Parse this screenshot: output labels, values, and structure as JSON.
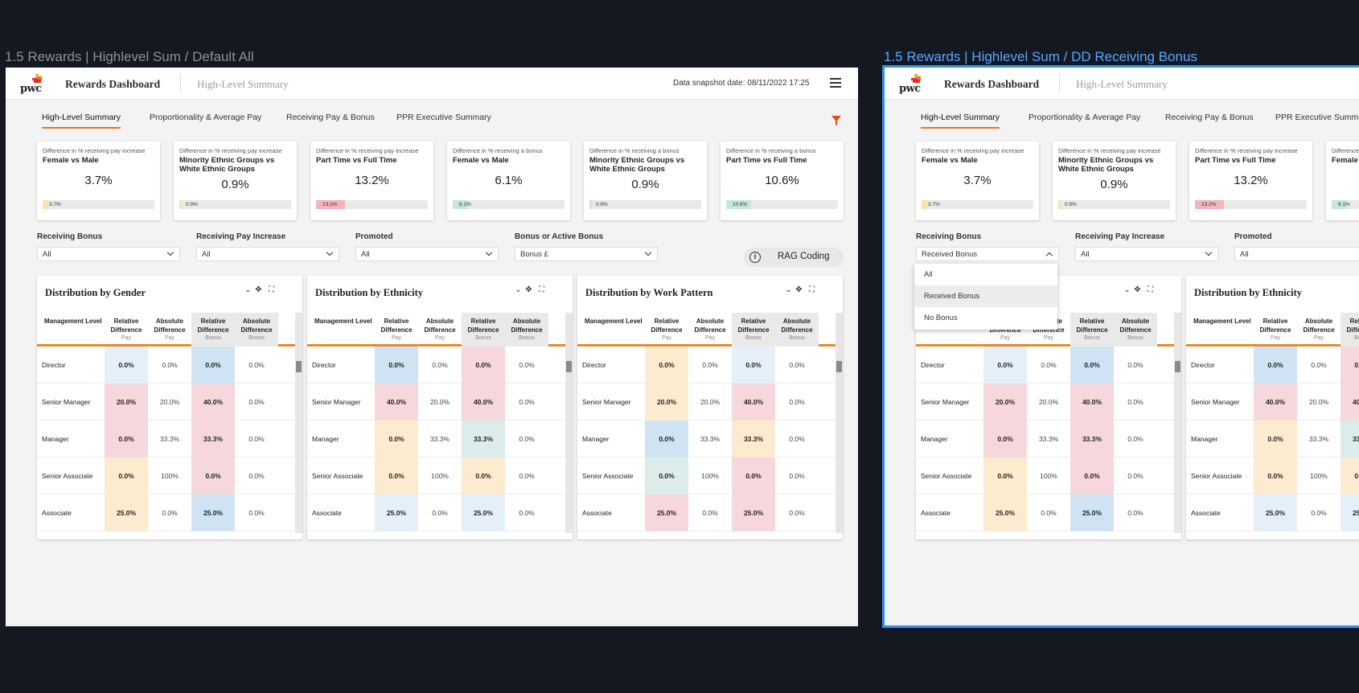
{
  "frames": [
    {
      "title": "1.5 Rewards | Highlevel Sum / Default All"
    },
    {
      "title": "1.5 Rewards | Highlevel Sum / DD Receiving Bonus"
    }
  ],
  "header": {
    "logo_text": "pwc",
    "app_name": "Rewards Dashboard",
    "page_name": "High-Level Summary",
    "snapshot": "Data snapshot date: 08/11/2022 17:25"
  },
  "tabs": [
    "High-Level Summary",
    "Proportionality & Average Pay",
    "Receiving Pay & Bonus",
    "PPR Executive Summary"
  ],
  "cards": [
    {
      "caption": "Difference in % receiving pay increase",
      "title": "Female vs Male",
      "value": "3.7%",
      "bar_label": "3.7%",
      "fill_pct": 5,
      "color": "#fbe0b0"
    },
    {
      "caption": "Difference in % receiving pay increase",
      "title": "Minority Ethnic Groups vs White Ethnic Groups",
      "value": "0.9%",
      "bar_label": "0.9%",
      "fill_pct": 2,
      "color": "#fbe0b0"
    },
    {
      "caption": "Difference in % receiving pay increase",
      "title": "Part Time vs Full Time",
      "value": "13.2%",
      "bar_label": "13.2%",
      "fill_pct": 26,
      "color": "#f4b4bd"
    },
    {
      "caption": "Difference in % receiving a bonus",
      "title": "Female vs Male",
      "value": "6.1%",
      "bar_label": "6.1%",
      "fill_pct": 14,
      "color": "#c6e5e0"
    },
    {
      "caption": "Difference in % receiving a bonus",
      "title": "Minority Ethnic Groups vs White Ethnic Groups",
      "value": "0.9%",
      "bar_label": "0.9%",
      "fill_pct": 2,
      "color": "#c6e5e0"
    },
    {
      "caption": "Difference in % receiving a bonus",
      "title": "Part Time vs Full Time",
      "value": "10.6%",
      "bar_label": "10.6%",
      "fill_pct": 22,
      "color": "#c6e5e0"
    }
  ],
  "filters": [
    {
      "label": "Receiving Bonus",
      "value": "All",
      "value_open": "Received Bonus"
    },
    {
      "label": "Receiving Pay Increase",
      "value": "All"
    },
    {
      "label": "Promoted",
      "value": "All"
    },
    {
      "label": "Bonus or Active Bonus",
      "value": "Bonus £"
    }
  ],
  "rag_label": "RAG Coding",
  "dropdown_options": [
    "All",
    "Received Bonus",
    "No Bonus"
  ],
  "table_headers": {
    "level": "Management Level",
    "rel": "Relative Difference",
    "abs": "Absolute Difference",
    "pay": "Pay",
    "bonus": "Bonus"
  },
  "levels": [
    "Director",
    "Senior Manager",
    "Manager",
    "Senior Associate",
    "Associate"
  ],
  "colors": {
    "blue": "#cfe3f4",
    "pale_blue": "#e4eff9",
    "pink": "#f6d7dc",
    "amber": "#fdebcf",
    "teal": "#dcecea",
    "accent": "#e0781d",
    "frame_highlight": "#2d8ff0"
  },
  "panels": [
    {
      "title": "Distribution by Gender",
      "rows": [
        {
          "rp": "0.0%",
          "rpc": "pale_blue",
          "ap": "0.0%",
          "rb": "0.0%",
          "rbc": "blue",
          "ab": "0.0%"
        },
        {
          "rp": "20.0%",
          "rpc": "pink",
          "ap": "20.0%",
          "rb": "40.0%",
          "rbc": "pink",
          "ab": "0.0%"
        },
        {
          "rp": "0.0%",
          "rpc": "pink",
          "ap": "33.3%",
          "rb": "33.3%",
          "rbc": "pink",
          "ab": "0.0%"
        },
        {
          "rp": "0.0%",
          "rpc": "amber",
          "ap": "100%",
          "rb": "0.0%",
          "rbc": "pink",
          "ab": "0.0%"
        },
        {
          "rp": "25.0%",
          "rpc": "amber",
          "ap": "0.0%",
          "rb": "25.0%",
          "rbc": "blue",
          "ab": "0.0%"
        }
      ]
    },
    {
      "title": "Distribution by Ethnicity",
      "rows": [
        {
          "rp": "0.0%",
          "rpc": "blue",
          "ap": "0.0%",
          "rb": "0.0%",
          "rbc": "pink",
          "ab": "0.0%"
        },
        {
          "rp": "40.0%",
          "rpc": "pink",
          "ap": "20.0%",
          "rb": "40.0%",
          "rbc": "pink",
          "ab": "0.0%"
        },
        {
          "rp": "0.0%",
          "rpc": "amber",
          "ap": "33.3%",
          "rb": "33.3%",
          "rbc": "teal",
          "ab": "0.0%"
        },
        {
          "rp": "0.0%",
          "rpc": "amber",
          "ap": "100%",
          "rb": "0.0%",
          "rbc": "amber",
          "ab": "0.0%"
        },
        {
          "rp": "25.0%",
          "rpc": "pale_blue",
          "ap": "0.0%",
          "rb": "25.0%",
          "rbc": "pale_blue",
          "ab": "0.0%"
        }
      ]
    },
    {
      "title": "Distribution by Work Pattern",
      "rows": [
        {
          "rp": "0.0%",
          "rpc": "amber",
          "ap": "0.0%",
          "rb": "0.0%",
          "rbc": "pale_blue",
          "ab": "0.0%"
        },
        {
          "rp": "20.0%",
          "rpc": "amber",
          "ap": "20.0%",
          "rb": "40.0%",
          "rbc": "pink",
          "ab": "0.0%"
        },
        {
          "rp": "0.0%",
          "rpc": "blue",
          "ap": "33.3%",
          "rb": "33.3%",
          "rbc": "amber",
          "ab": "0.0%"
        },
        {
          "rp": "0.0%",
          "rpc": "teal",
          "ap": "100%",
          "rb": "0.0%",
          "rbc": "pink",
          "ab": "0.0%"
        },
        {
          "rp": "25.0%",
          "rpc": "pink",
          "ap": "0.0%",
          "rb": "25.0%",
          "rbc": "pink",
          "ab": "0.0%"
        }
      ]
    }
  ]
}
